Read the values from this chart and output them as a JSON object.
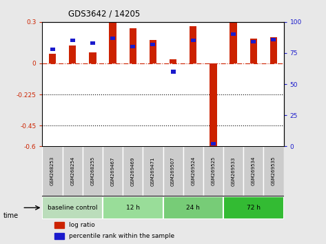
{
  "title": "GDS3642 / 14205",
  "samples": [
    "GSM268253",
    "GSM268254",
    "GSM268255",
    "GSM269467",
    "GSM269469",
    "GSM269471",
    "GSM269507",
    "GSM269524",
    "GSM269525",
    "GSM269533",
    "GSM269534",
    "GSM269535"
  ],
  "log_ratio": [
    0.07,
    0.13,
    0.08,
    0.295,
    0.255,
    0.17,
    0.03,
    0.27,
    -0.6,
    0.295,
    0.18,
    0.19
  ],
  "percentile_rank": [
    78,
    85,
    83,
    87,
    80,
    82,
    60,
    85,
    2,
    90,
    84,
    86
  ],
  "ylim_left": [
    -0.6,
    0.3
  ],
  "ylim_right": [
    0,
    100
  ],
  "yticks_left": [
    0.3,
    0,
    -0.225,
    -0.45,
    -0.6
  ],
  "yticks_right": [
    100,
    75,
    50,
    25,
    0
  ],
  "dotted_lines": [
    -0.225,
    -0.45
  ],
  "bar_color_red": "#cc2200",
  "bar_color_blue": "#1a1acc",
  "groups": [
    {
      "label": "baseline control",
      "start": 0,
      "end": 3,
      "color": "#bbddbb"
    },
    {
      "label": "12 h",
      "start": 3,
      "end": 6,
      "color": "#99dd99"
    },
    {
      "label": "24 h",
      "start": 6,
      "end": 9,
      "color": "#77cc77"
    },
    {
      "label": "72 h",
      "start": 9,
      "end": 12,
      "color": "#33bb33"
    }
  ],
  "time_label": "time",
  "legend_red": "log ratio",
  "legend_blue": "percentile rank within the sample",
  "bg_color": "#e8e8e8",
  "plot_bg": "#ffffff",
  "sample_bg": "#cccccc"
}
